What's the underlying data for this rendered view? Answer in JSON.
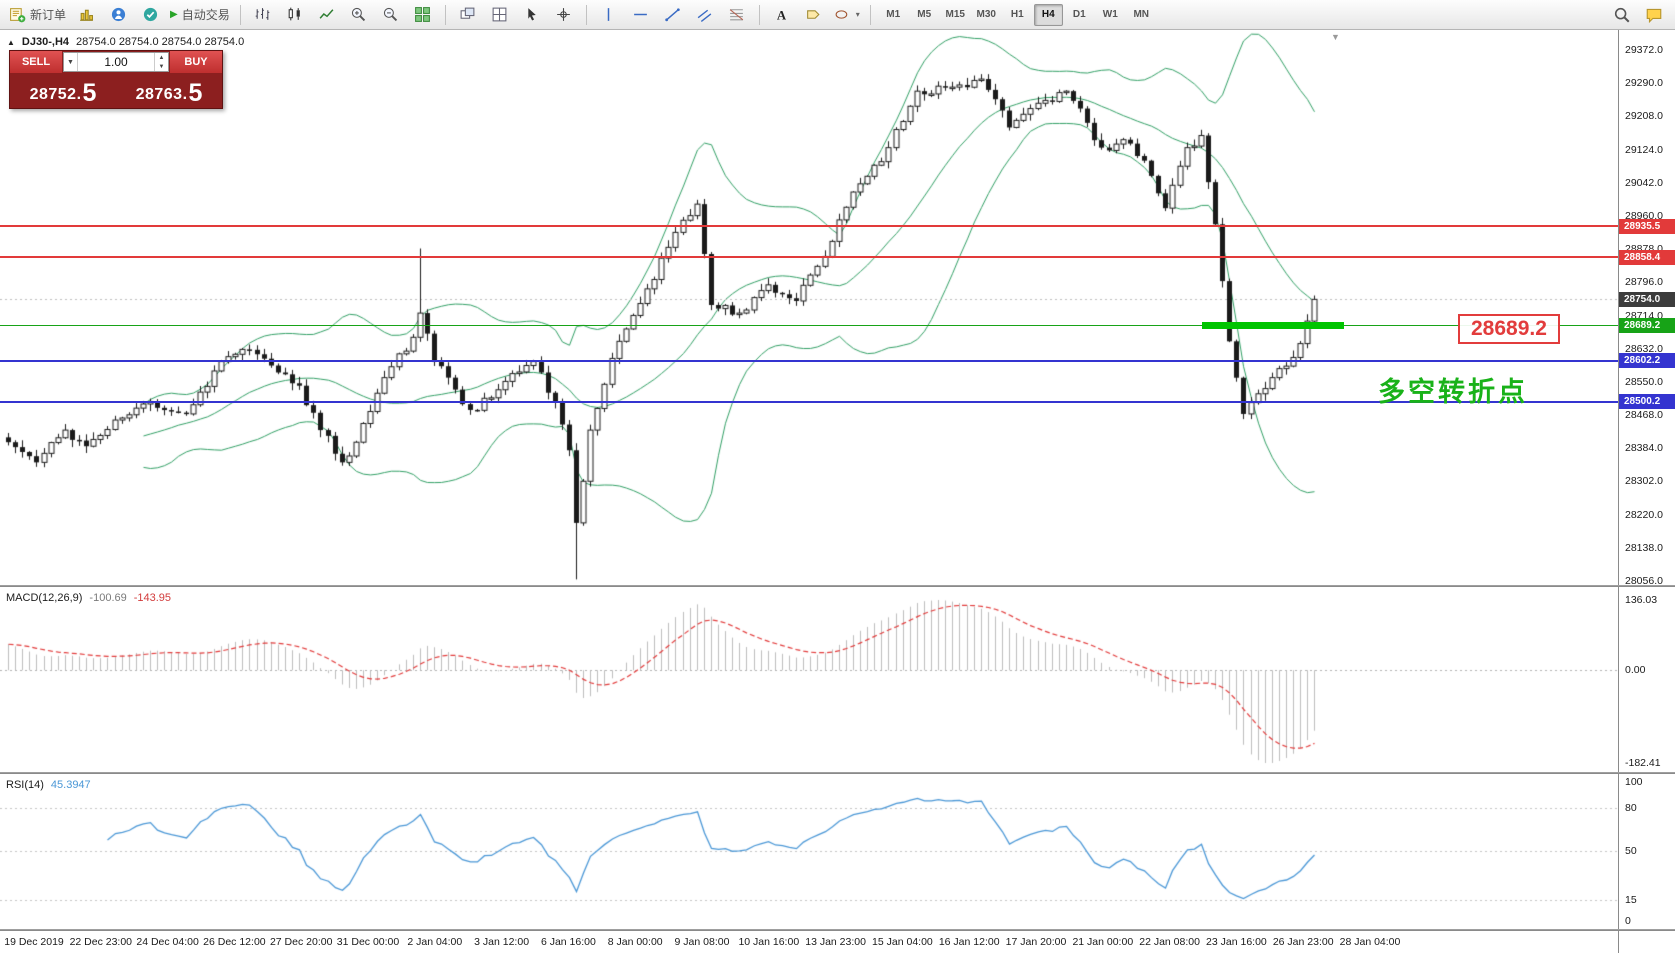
{
  "toolbar": {
    "new_order_label": "新订单",
    "auto_trading_label": "自动交易",
    "timeframes": [
      "M1",
      "M5",
      "M15",
      "M30",
      "H1",
      "H4",
      "D1",
      "W1",
      "MN"
    ],
    "active_timeframe": "H4"
  },
  "chart": {
    "symbol_period": "DJ30-,H4",
    "ohlc": "28754.0  28754.0  28754.0  28754.0"
  },
  "trade_panel": {
    "sell_label": "SELL",
    "buy_label": "BUY",
    "volume": "1.00",
    "sell_price_main": "28752.",
    "sell_price_big": "5",
    "buy_price_main": "28763.",
    "buy_price_big": "5"
  },
  "price_axis": {
    "labels": [
      "29372.0",
      "29290.0",
      "29208.0",
      "29124.0",
      "29042.0",
      "28960.0",
      "28878.0",
      "28796.0",
      "28714.0",
      "28632.0",
      "28550.0",
      "28468.0",
      "28384.0",
      "28302.0",
      "28220.0",
      "28138.0",
      "28056.0"
    ],
    "tags": [
      {
        "text": "28935.5",
        "price": 28935.5,
        "color": "#e23a3a",
        "name": "resistance-upper"
      },
      {
        "text": "28858.4",
        "price": 28858.4,
        "color": "#e23a3a",
        "name": "resistance-lower"
      },
      {
        "text": "28754.0",
        "price": 28754.0,
        "color": "#3c3c3c",
        "name": "current-price"
      },
      {
        "text": "28689.2",
        "price": 28689.2,
        "color": "#17a317",
        "name": "pivot-level"
      },
      {
        "text": "28602.2",
        "price": 28602.2,
        "color": "#3434d0",
        "name": "support-upper"
      },
      {
        "text": "28500.2",
        "price": 28500.2,
        "color": "#3434d0",
        "name": "support-lower"
      }
    ]
  },
  "levels": [
    {
      "price": 28935.5,
      "color": "#e23a3a",
      "thickness": 2
    },
    {
      "price": 28858.4,
      "color": "#e23a3a",
      "thickness": 2
    },
    {
      "price": 28689.2,
      "color": "#17a317",
      "thickness": 1
    },
    {
      "price": 28602.2,
      "color": "#3434d0",
      "thickness": 2
    },
    {
      "price": 28500.2,
      "color": "#3434d0",
      "thickness": 2
    }
  ],
  "highlight_bar": {
    "price": 28689.2,
    "start_index": 168,
    "end_index": 188,
    "color": "#00c400"
  },
  "annotations": {
    "price_label": "28689.2",
    "turning_point": "多空转折点"
  },
  "indicators": {
    "macd": {
      "label": "MACD(12,26,9)",
      "value1": "-100.69",
      "value2": "-143.95",
      "axis": [
        "136.03",
        "0.00",
        "-182.41"
      ]
    },
    "rsi": {
      "label": "RSI(14)",
      "value": "45.3947",
      "axis": [
        100,
        80,
        50,
        15,
        0
      ],
      "guide_levels": [
        80,
        50,
        15
      ]
    }
  },
  "time_axis": {
    "labels": [
      "19 Dec 2019",
      "22 Dec 23:00",
      "24 Dec 04:00",
      "26 Dec 12:00",
      "27 Dec 20:00",
      "31 Dec 00:00",
      "2 Jan 04:00",
      "3 Jan 12:00",
      "6 Jan 16:00",
      "8 Jan 00:00",
      "9 Jan 08:00",
      "10 Jan 16:00",
      "13 Jan 23:00",
      "15 Jan 04:00",
      "16 Jan 12:00",
      "17 Jan 20:00",
      "21 Jan 00:00",
      "22 Jan 08:00",
      "23 Jan 16:00",
      "26 Jan 23:00",
      "28 Jan 04:00"
    ]
  },
  "chart_data": {
    "type": "candlestick",
    "symbol": "DJ30-",
    "timeframe": "H4",
    "price_range": [
      28056,
      29372
    ],
    "current_price": 28754.0,
    "candle_count": 185,
    "seed": 11,
    "waypoints": [
      [
        0,
        28400
      ],
      [
        4,
        28350
      ],
      [
        8,
        28430
      ],
      [
        11,
        28390
      ],
      [
        16,
        28460
      ],
      [
        20,
        28500
      ],
      [
        25,
        28470
      ],
      [
        30,
        28600
      ],
      [
        33,
        28630
      ],
      [
        37,
        28590
      ],
      [
        41,
        28540
      ],
      [
        44,
        28430
      ],
      [
        47,
        28350
      ],
      [
        49,
        28400
      ],
      [
        53,
        28560
      ],
      [
        57,
        28660
      ],
      [
        58,
        28720
      ],
      [
        60,
        28600
      ],
      [
        62,
        28560
      ],
      [
        65,
        28480
      ],
      [
        68,
        28510
      ],
      [
        71,
        28570
      ],
      [
        74,
        28600
      ],
      [
        77,
        28500
      ],
      [
        79,
        28380
      ],
      [
        80,
        28200
      ],
      [
        82,
        28430
      ],
      [
        86,
        28650
      ],
      [
        90,
        28780
      ],
      [
        94,
        28920
      ],
      [
        97,
        28990
      ],
      [
        99,
        28740
      ],
      [
        103,
        28720
      ],
      [
        107,
        28790
      ],
      [
        111,
        28750
      ],
      [
        115,
        28860
      ],
      [
        119,
        29020
      ],
      [
        124,
        29130
      ],
      [
        128,
        29270
      ],
      [
        133,
        29280
      ],
      [
        137,
        29300
      ],
      [
        141,
        29180
      ],
      [
        145,
        29240
      ],
      [
        149,
        29270
      ],
      [
        154,
        29130
      ],
      [
        158,
        29140
      ],
      [
        161,
        29060
      ],
      [
        163,
        28980
      ],
      [
        166,
        29130
      ],
      [
        168,
        29160
      ],
      [
        170,
        28940
      ],
      [
        172,
        28650
      ],
      [
        174,
        28470
      ],
      [
        176,
        28520
      ],
      [
        178,
        28560
      ],
      [
        181,
        28610
      ],
      [
        183,
        28700
      ],
      [
        184,
        28754
      ]
    ],
    "wick_overrides": {
      "58": {
        "high": 28880
      },
      "80": {
        "low": 28060
      }
    },
    "overlays": [
      "Bollinger Bands (20,2)"
    ],
    "key_levels": [
      28935.5,
      28858.4,
      28689.2,
      28602.2,
      28500.2
    ]
  }
}
